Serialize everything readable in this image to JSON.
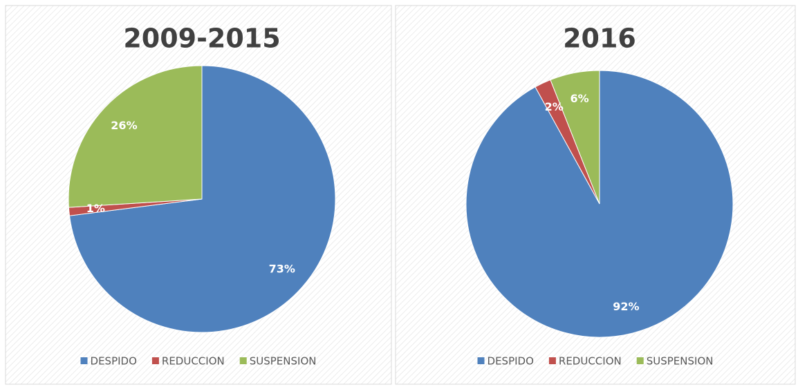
{
  "chart_data": [
    {
      "type": "pie",
      "title": "2009-2015",
      "categories": [
        "DESPIDO",
        "REDUCCION",
        "SUSPENSION"
      ],
      "values": [
        73,
        1,
        26
      ],
      "value_labels": [
        "73%",
        "1%",
        "26%"
      ],
      "colors": [
        "#4f81bd",
        "#c0504d",
        "#9bbb59"
      ],
      "legend": "bottom"
    },
    {
      "type": "pie",
      "title": "2016",
      "categories": [
        "DESPIDO",
        "REDUCCION",
        "SUSPENSION"
      ],
      "values": [
        92,
        2,
        6
      ],
      "value_labels": [
        "92%",
        "2%",
        "6%"
      ],
      "colors": [
        "#4f81bd",
        "#c0504d",
        "#9bbb59"
      ],
      "legend": "bottom"
    }
  ]
}
